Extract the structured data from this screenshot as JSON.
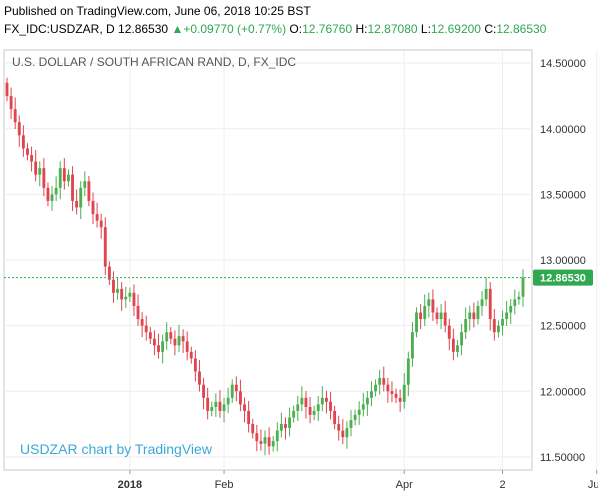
{
  "header": {
    "published": "Published on TradingView.com, June 06, 2018 10:25 BST",
    "symbol": "FX_IDC:USDZAR, D",
    "last": "12.86530",
    "arrow": "▲",
    "change": "+0.09770 (+0.77%)",
    "o_label": "O:",
    "o_val": "12.76760",
    "h_label": "H:",
    "h_val": "12.87080",
    "l_label": "L:",
    "l_val": "12.69200",
    "c_label": "C:",
    "c_val": "12.86530"
  },
  "colors": {
    "up": "#4caf50",
    "down": "#e0454f",
    "last_line": "#2fa84f",
    "tag": "#2fa84f"
  },
  "chart_data": {
    "type": "candlestick",
    "title": "U.S. DOLLAR / SOUTH AFRICAN RAND, D, FX_IDC",
    "watermark": "USDZAR chart by TradingView",
    "y_ticks": [
      "14.50000",
      "14.00000",
      "13.50000",
      "13.00000",
      "12.50000",
      "12.00000",
      "11.50000"
    ],
    "y_tick_values": [
      14.5,
      14.0,
      13.5,
      13.0,
      12.5,
      12.0,
      11.5
    ],
    "ylim": [
      11.4,
      14.6
    ],
    "x_ticks": [
      {
        "label": "2018",
        "index": 30,
        "bold": true
      },
      {
        "label": "Feb",
        "index": 53
      },
      {
        "label": "Apr",
        "index": 97
      },
      {
        "label": "2",
        "index": 121
      },
      {
        "label": "Jun",
        "index": 144
      }
    ],
    "last_price": 12.8653,
    "last_price_label": "12.86530",
    "close": [
      14.25,
      14.15,
      14.05,
      13.95,
      13.85,
      13.8,
      13.75,
      13.65,
      13.7,
      13.55,
      13.45,
      13.5,
      13.55,
      13.7,
      13.6,
      13.65,
      13.45,
      13.4,
      13.55,
      13.6,
      13.45,
      13.35,
      13.3,
      13.25,
      12.95,
      12.85,
      12.75,
      12.78,
      12.7,
      12.72,
      12.75,
      12.65,
      12.55,
      12.5,
      12.45,
      12.4,
      12.35,
      12.3,
      12.38,
      12.45,
      12.4,
      12.35,
      12.42,
      12.38,
      12.3,
      12.25,
      12.15,
      12.05,
      11.95,
      11.85,
      11.88,
      11.92,
      11.85,
      11.9,
      11.95,
      12.05,
      12.0,
      11.9,
      11.85,
      11.75,
      11.68,
      11.62,
      11.6,
      11.65,
      11.58,
      11.62,
      11.7,
      11.75,
      11.72,
      11.8,
      11.85,
      11.9,
      11.95,
      11.88,
      11.82,
      11.85,
      11.9,
      11.95,
      11.92,
      11.85,
      11.75,
      11.7,
      11.65,
      11.72,
      11.78,
      11.82,
      11.86,
      11.9,
      11.95,
      12.0,
      12.05,
      12.1,
      12.05,
      12.0,
      11.98,
      11.95,
      11.92,
      12.05,
      12.25,
      12.45,
      12.6,
      12.55,
      12.65,
      12.7,
      12.6,
      12.55,
      12.6,
      12.5,
      12.4,
      12.3,
      12.35,
      12.45,
      12.55,
      12.6,
      12.55,
      12.65,
      12.7,
      12.78,
      12.55,
      12.45,
      12.5,
      12.55,
      12.6,
      12.65,
      12.7,
      12.72,
      12.865
    ]
  }
}
